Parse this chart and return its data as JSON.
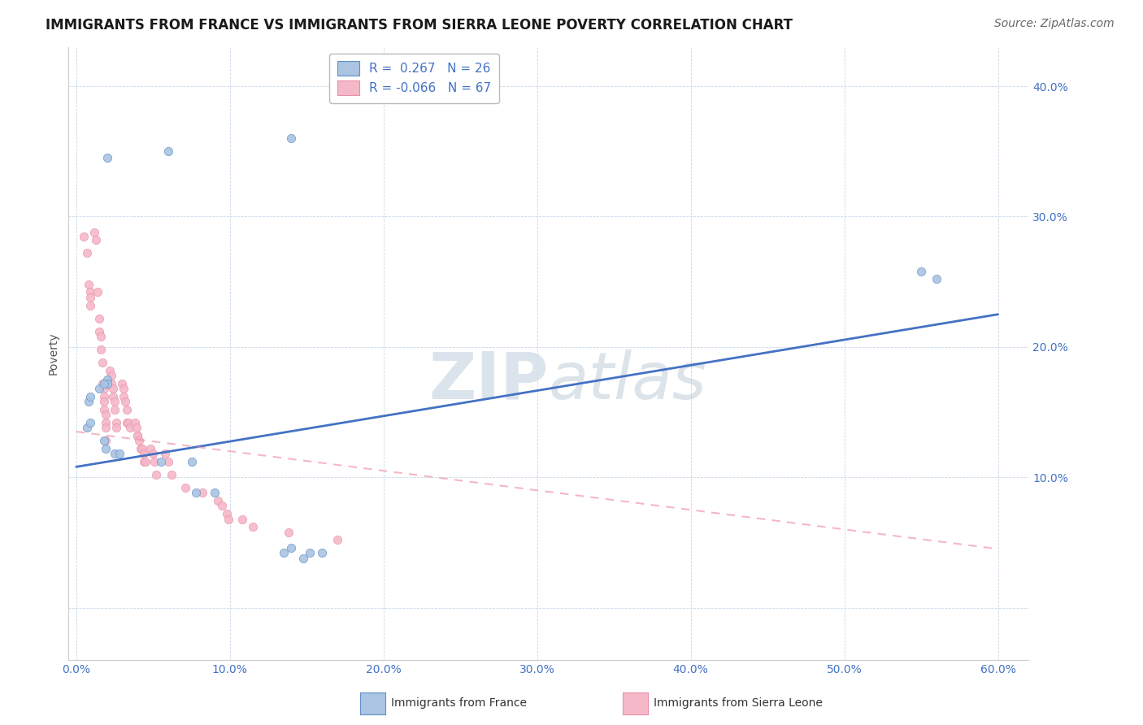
{
  "title": "IMMIGRANTS FROM FRANCE VS IMMIGRANTS FROM SIERRA LEONE POVERTY CORRELATION CHART",
  "source": "Source: ZipAtlas.com",
  "ylabel": "Poverty",
  "yticks": [
    0.0,
    0.1,
    0.2,
    0.3,
    0.4
  ],
  "ytick_labels": [
    "",
    "10.0%",
    "20.0%",
    "30.0%",
    "40.0%"
  ],
  "xticks": [
    0.0,
    0.1,
    0.2,
    0.3,
    0.4,
    0.5,
    0.6
  ],
  "xtick_labels": [
    "0.0%",
    "10.0%",
    "20.0%",
    "30.0%",
    "40.0%",
    "50.0%",
    "60.0%"
  ],
  "xlim": [
    -0.005,
    0.62
  ],
  "ylim": [
    -0.04,
    0.43
  ],
  "legend_france_R": "0.267",
  "legend_france_N": "26",
  "legend_sierra_leone_R": "-0.066",
  "legend_sierra_leone_N": "67",
  "color_france": "#aac4e2",
  "color_sierra_leone": "#f5b8c8",
  "trendline_france_color": "#4472c4",
  "trendline_sierra_leone_color": "#f090a8",
  "watermark_zip": "ZIP",
  "watermark_atlas": "atlas",
  "france_scatter_x": [
    0.02,
    0.06,
    0.14,
    0.02,
    0.02,
    0.015,
    0.018,
    0.008,
    0.009,
    0.007,
    0.009,
    0.018,
    0.019,
    0.025,
    0.028,
    0.055,
    0.075,
    0.078,
    0.09,
    0.135,
    0.14,
    0.148,
    0.152,
    0.16,
    0.55,
    0.56
  ],
  "france_scatter_y": [
    0.345,
    0.35,
    0.36,
    0.175,
    0.172,
    0.168,
    0.172,
    0.158,
    0.162,
    0.138,
    0.142,
    0.128,
    0.122,
    0.118,
    0.118,
    0.112,
    0.112,
    0.088,
    0.088,
    0.042,
    0.046,
    0.038,
    0.042,
    0.042,
    0.258,
    0.252
  ],
  "sierra_leone_scatter_x": [
    0.005,
    0.007,
    0.008,
    0.009,
    0.009,
    0.009,
    0.012,
    0.013,
    0.014,
    0.015,
    0.015,
    0.016,
    0.016,
    0.017,
    0.017,
    0.018,
    0.018,
    0.018,
    0.018,
    0.019,
    0.019,
    0.019,
    0.019,
    0.022,
    0.023,
    0.023,
    0.024,
    0.024,
    0.025,
    0.025,
    0.026,
    0.026,
    0.03,
    0.031,
    0.031,
    0.032,
    0.033,
    0.033,
    0.034,
    0.035,
    0.038,
    0.039,
    0.04,
    0.04,
    0.041,
    0.042,
    0.043,
    0.044,
    0.044,
    0.045,
    0.048,
    0.05,
    0.051,
    0.052,
    0.058,
    0.06,
    0.062,
    0.071,
    0.082,
    0.092,
    0.095,
    0.098,
    0.099,
    0.108,
    0.115,
    0.138,
    0.17
  ],
  "sierra_leone_scatter_y": [
    0.285,
    0.272,
    0.248,
    0.242,
    0.238,
    0.232,
    0.288,
    0.282,
    0.242,
    0.222,
    0.212,
    0.208,
    0.198,
    0.188,
    0.172,
    0.168,
    0.162,
    0.158,
    0.152,
    0.148,
    0.142,
    0.138,
    0.128,
    0.182,
    0.178,
    0.172,
    0.168,
    0.162,
    0.158,
    0.152,
    0.142,
    0.138,
    0.172,
    0.168,
    0.162,
    0.158,
    0.152,
    0.142,
    0.142,
    0.138,
    0.142,
    0.138,
    0.132,
    0.132,
    0.128,
    0.122,
    0.122,
    0.118,
    0.112,
    0.112,
    0.122,
    0.118,
    0.112,
    0.102,
    0.118,
    0.112,
    0.102,
    0.092,
    0.088,
    0.082,
    0.078,
    0.072,
    0.068,
    0.068,
    0.062,
    0.058,
    0.052
  ],
  "france_trend_x": [
    0.0,
    0.6
  ],
  "france_trend_y": [
    0.108,
    0.225
  ],
  "sierra_leone_trend_x": [
    0.0,
    0.6
  ],
  "sierra_leone_trend_y": [
    0.135,
    0.045
  ],
  "bg_color": "#ffffff",
  "grid_color": "#c8d8e8",
  "title_fontsize": 12,
  "axis_label_fontsize": 10,
  "tick_fontsize": 10,
  "legend_fontsize": 11
}
